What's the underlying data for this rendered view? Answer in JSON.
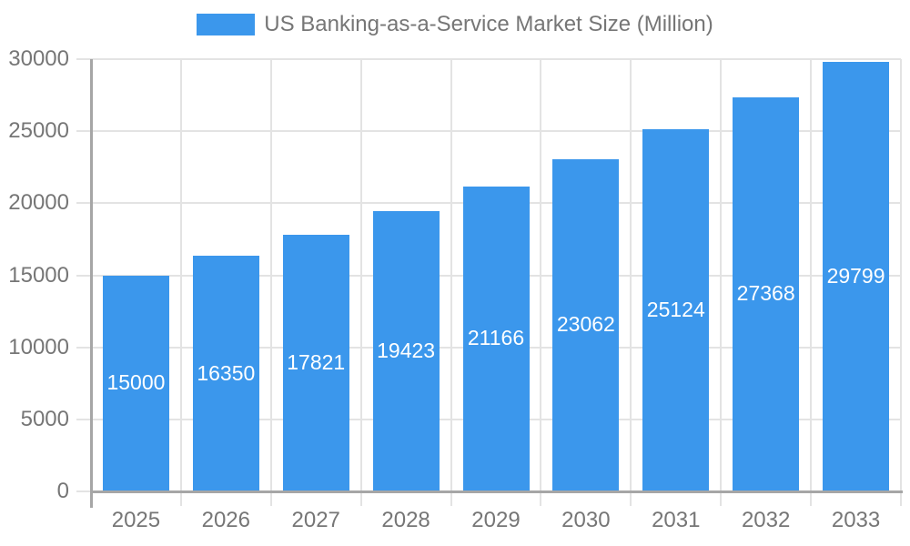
{
  "chart_data": {
    "type": "bar",
    "title": "US Banking-as-a-Service Market Size (Million)",
    "categories": [
      "2025",
      "2026",
      "2027",
      "2028",
      "2029",
      "2030",
      "2031",
      "2032",
      "2033"
    ],
    "values": [
      15000,
      16350,
      17821,
      19423,
      21166,
      23062,
      25124,
      27368,
      29799
    ],
    "value_labels": [
      "15000",
      "16350",
      "17821",
      "19423",
      "21166",
      "23062",
      "25124",
      "27368",
      "29799"
    ],
    "xlabel": "",
    "ylabel": "",
    "ylim": [
      0,
      30000
    ],
    "yticks": [
      0,
      5000,
      10000,
      15000,
      20000,
      25000,
      30000
    ],
    "ytick_labels": [
      "0",
      "5000",
      "10000",
      "15000",
      "20000",
      "25000",
      "30000"
    ],
    "grid": "on",
    "legend_position": "top-center",
    "colors": {
      "bar": "#3B97EC",
      "grid": "#E3E3E3",
      "axis": "#A6A6A6",
      "tick_text": "#767676",
      "legend_text": "#767676",
      "value_label_text": "#FFFFFF",
      "background": "#FFFFFF"
    }
  }
}
